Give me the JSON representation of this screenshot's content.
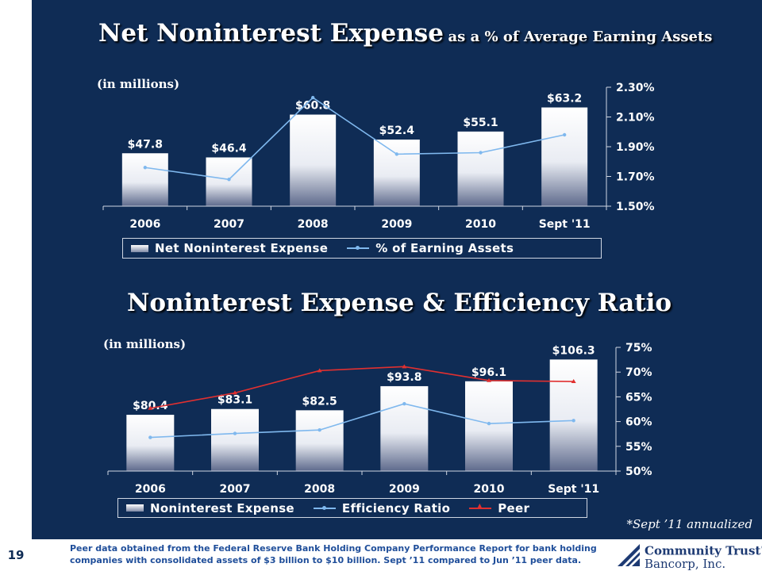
{
  "page": {
    "number": "19",
    "annualized_note": "*Sept ’11 annualized",
    "footnote": "Peer data obtained from the Federal Reserve Bank Holding Company Performance Report for bank holding companies with consolidated assets  of $3 billion to $10 billion.  Sept ’11 compared to Jun ’11 peer data.",
    "logo": {
      "line1": "Community Trust",
      "reg": "®",
      "line2": "Bancorp, Inc.",
      "icon": "bank-building-icon"
    },
    "colors": {
      "background": "#0f2c55",
      "line": "#7fb8ee",
      "peer": "#e03030"
    }
  },
  "chart_data": [
    {
      "type": "bar",
      "title_main": "Net Noninterest Expense",
      "title_sub": "as a % of Average Earning Assets",
      "unit_note": "(in millions)",
      "categories": [
        "2006",
        "2007",
        "2008",
        "2009",
        "2010",
        "Sept '11"
      ],
      "bar_labels": [
        "$47.8",
        "$46.4",
        "$60.8",
        "$52.4",
        "$55.1",
        "$63.2"
      ],
      "ytick_labels_right": [
        "2.30%",
        "2.10%",
        "1.90%",
        "1.70%",
        "1.50%"
      ],
      "y2lim": [
        1.5,
        2.3
      ],
      "series": [
        {
          "name": "Net Noninterest Expense",
          "kind": "bar",
          "values": [
            47.8,
            46.4,
            60.8,
            52.4,
            55.1,
            63.2
          ]
        },
        {
          "name": "% of Earning Assets",
          "kind": "line",
          "axis": "right",
          "values": [
            1.76,
            1.68,
            2.23,
            1.85,
            1.86,
            1.98
          ]
        }
      ],
      "legend": [
        "Net Noninterest Expense",
        "% of Earning Assets"
      ],
      "legend_position": "bottom"
    },
    {
      "type": "bar",
      "title_main": "Noninterest Expense & Efficiency Ratio",
      "unit_note": "(in millions)",
      "categories": [
        "2006",
        "2007",
        "2008",
        "2009",
        "2010",
        "Sept '11"
      ],
      "bar_labels": [
        "$80.4",
        "$83.1",
        "$82.5",
        "$93.8",
        "$96.1",
        "$106.3"
      ],
      "ytick_labels_right": [
        "75%",
        "70%",
        "65%",
        "60%",
        "55%",
        "50%"
      ],
      "y2lim": [
        50,
        75
      ],
      "series": [
        {
          "name": "Noninterest Expense",
          "kind": "bar",
          "values": [
            80.4,
            83.1,
            82.5,
            93.8,
            96.1,
            106.3
          ]
        },
        {
          "name": "Efficiency Ratio",
          "kind": "line",
          "axis": "right",
          "values": [
            56.8,
            57.6,
            58.3,
            63.6,
            59.6,
            60.2
          ]
        },
        {
          "name": "Peer",
          "kind": "line",
          "axis": "right",
          "values": [
            62.7,
            65.8,
            70.3,
            71.1,
            68.3,
            68.1
          ]
        }
      ],
      "legend": [
        "Noninterest Expense",
        "Efficiency Ratio",
        "Peer"
      ],
      "legend_position": "bottom"
    }
  ]
}
